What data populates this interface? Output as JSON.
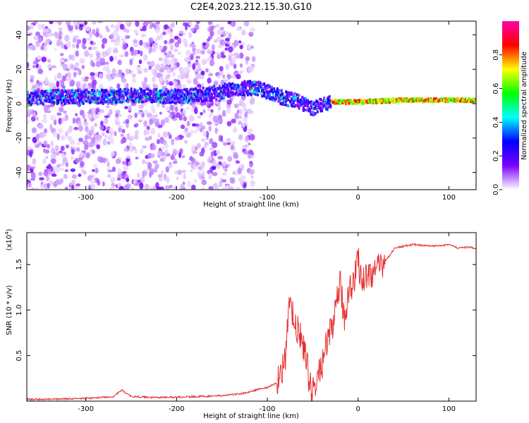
{
  "title": "C2E4.2023.212.15.30.G10",
  "chart_data": [
    {
      "type": "heatmap",
      "xlabel": "Height of straight line (km)",
      "ylabel": "Frequency (Hz)",
      "xlim": [
        -365,
        130
      ],
      "ylim": [
        -50,
        48
      ],
      "xticks": [
        -300,
        -200,
        -100,
        0,
        100
      ],
      "yticks": [
        -40,
        -20,
        0,
        20,
        40
      ],
      "colorbar": {
        "label": "Normalized spectral amplitude",
        "range": [
          0,
          1
        ],
        "ticks": [
          0.0,
          0.2,
          0.4,
          0.6,
          0.8
        ],
        "colors": [
          "#ffffff",
          "#7a00ff",
          "#0000ff",
          "#00ffff",
          "#00ff00",
          "#ffff00",
          "#ff0000",
          "#ff00aa"
        ]
      },
      "ridge": {
        "x": [
          -365,
          -340,
          -300,
          -270,
          -240,
          -200,
          -160,
          -130,
          -110,
          -100,
          -90,
          -80,
          -70,
          -60,
          -50,
          -40,
          -30,
          -20,
          -10,
          0,
          50,
          100,
          130
        ],
        "y": [
          3,
          4,
          4,
          4,
          5,
          4,
          6,
          9,
          9,
          7,
          5,
          3,
          2,
          0,
          -3,
          -1,
          1,
          1,
          1,
          1,
          2,
          2,
          2
        ]
      }
    },
    {
      "type": "line",
      "xlabel": "Height of straight line (km)",
      "ylabel": "SNR (10 * v/v)",
      "multiplier": "(x10",
      "multiplier_exp": "4",
      "multiplier_close": ")",
      "xlim": [
        -365,
        130
      ],
      "ylim": [
        0,
        1.85
      ],
      "xticks": [
        -300,
        -200,
        -100,
        0,
        100
      ],
      "yticks": [
        0.5,
        1.0,
        1.5
      ],
      "ytick_labels": [
        "0.5",
        "1.0",
        "1.5"
      ],
      "color": "#e53030",
      "x": [
        -365,
        -340,
        -300,
        -270,
        -260,
        -250,
        -220,
        -180,
        -150,
        -130,
        -120,
        -110,
        -100,
        -90,
        -80,
        -75,
        -70,
        -65,
        -60,
        -55,
        -50,
        -45,
        -40,
        -35,
        -30,
        -25,
        -20,
        -15,
        -10,
        -5,
        0,
        5,
        10,
        15,
        20,
        25,
        30,
        35,
        40,
        50,
        60,
        70,
        80,
        90,
        100,
        110,
        120,
        130
      ],
      "y": [
        0.02,
        0.02,
        0.03,
        0.05,
        0.12,
        0.05,
        0.04,
        0.05,
        0.06,
        0.08,
        0.1,
        0.13,
        0.15,
        0.2,
        0.45,
        1.15,
        0.8,
        0.75,
        0.6,
        0.3,
        0.08,
        0.25,
        0.4,
        0.6,
        0.8,
        0.95,
        1.3,
        0.9,
        1.25,
        1.3,
        1.55,
        1.3,
        1.4,
        1.4,
        1.45,
        1.45,
        1.55,
        1.6,
        1.68,
        1.7,
        1.72,
        1.71,
        1.7,
        1.71,
        1.72,
        1.68,
        1.69,
        1.68
      ]
    }
  ]
}
